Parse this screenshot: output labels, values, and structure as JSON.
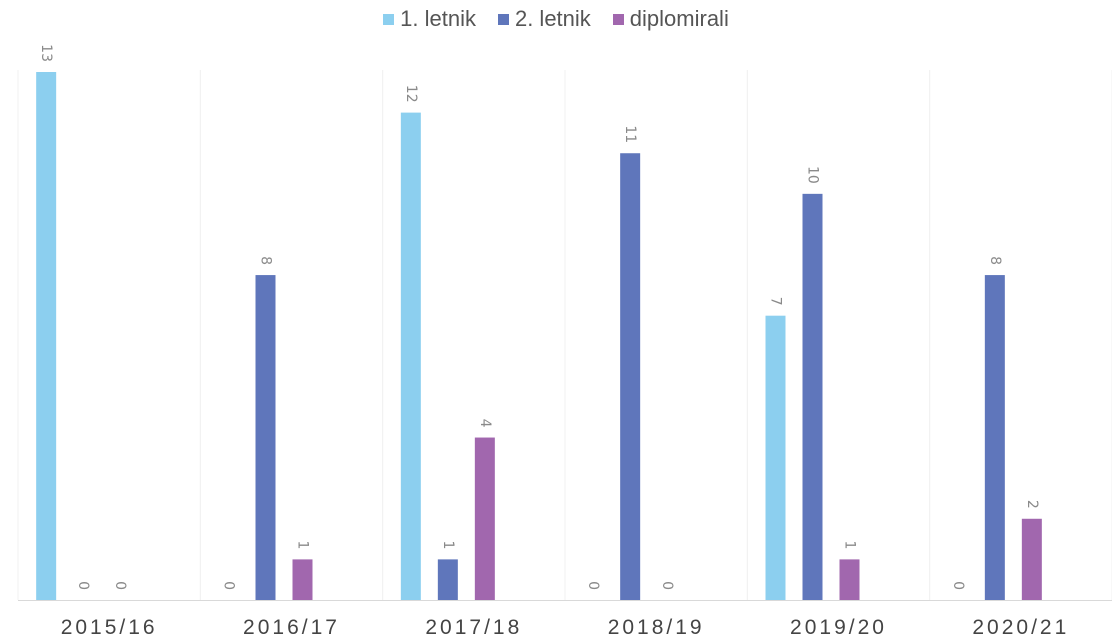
{
  "chart_data": {
    "type": "bar",
    "categories": [
      "2015/16",
      "2016/17",
      "2017/18",
      "2018/19",
      "2019/20",
      "2020/21"
    ],
    "series": [
      {
        "name": "1. letnik",
        "color": "#8ccfef",
        "values": [
          13,
          0,
          12,
          0,
          7,
          0
        ]
      },
      {
        "name": "2. letnik",
        "color": "#5f76bb",
        "values": [
          0,
          8,
          1,
          11,
          10,
          8
        ]
      },
      {
        "name": "diplomirali",
        "color": "#a167ae",
        "values": [
          0,
          1,
          4,
          0,
          1,
          2
        ]
      }
    ],
    "ylim": [
      0,
      13
    ],
    "grid": "vertical separators",
    "legend": "top-center",
    "data_labels": "rotated"
  }
}
